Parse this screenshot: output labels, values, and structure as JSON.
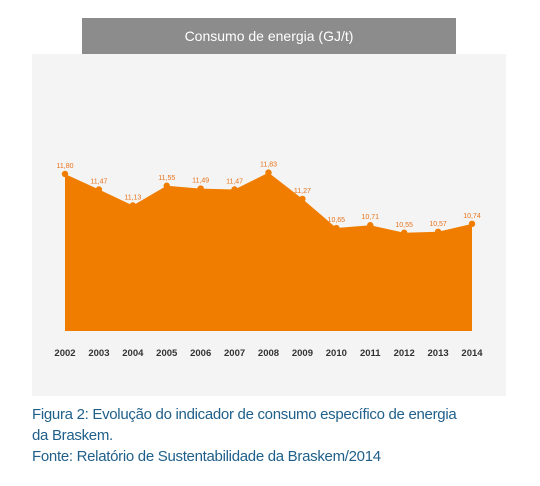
{
  "chart_data": {
    "type": "area",
    "title": "Consumo de energia (GJ/t)",
    "categories": [
      "2002",
      "2003",
      "2004",
      "2005",
      "2006",
      "2007",
      "2008",
      "2009",
      "2010",
      "2011",
      "2012",
      "2013",
      "2014"
    ],
    "values": [
      11.8,
      11.47,
      11.13,
      11.55,
      11.49,
      11.47,
      11.83,
      11.27,
      10.65,
      10.71,
      10.55,
      10.57,
      10.74
    ],
    "value_labels": [
      "11,80",
      "11,47",
      "11,13",
      "11,55",
      "11,49",
      "11,47",
      "11,83",
      "11,27",
      "10,65",
      "10,71",
      "10,55",
      "10,57",
      "10,74"
    ],
    "fill_color": "#f07d00",
    "label_color": "#e8721a",
    "grid": false,
    "legend": "none"
  },
  "caption": {
    "line1": "Figura 2: Evolução do indicador de consumo específico de energia",
    "line2": "da Braskem.",
    "line3": "Fonte: Relatório de Sustentabilidade da Braskem/2014"
  }
}
